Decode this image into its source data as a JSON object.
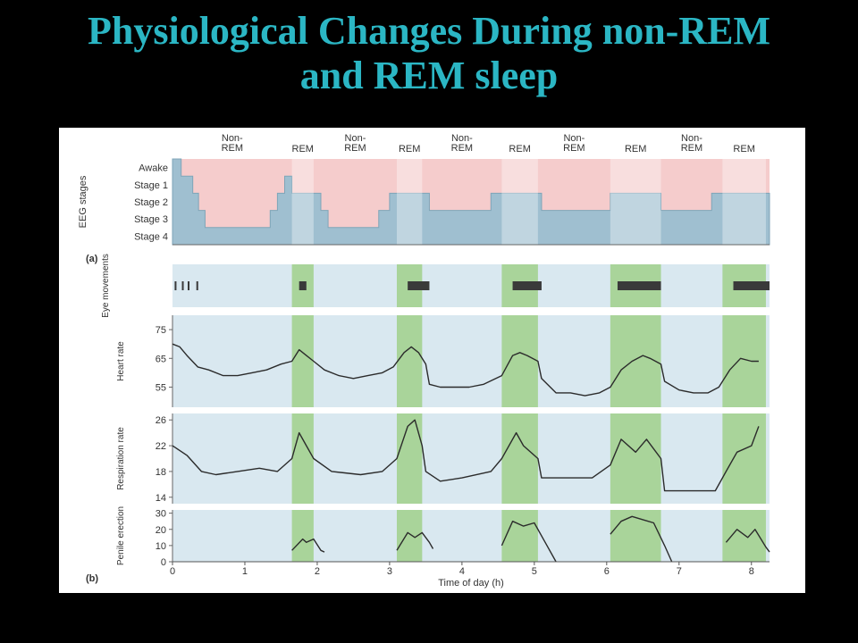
{
  "slide": {
    "title_line1": "Physiological Changes During non-REM",
    "title_line2": "and REM sleep",
    "title_color": "#2bb6c4"
  },
  "colors": {
    "rem_band": "#a9d49a",
    "panel_bg": "#d9e8f0",
    "awake_fill": "#f5cccc",
    "stage_fill": "#9fbfd0",
    "trace": "#2b2b2b"
  },
  "chart_data": {
    "type": "line",
    "x_axis": {
      "label": "Time of day (h)",
      "ticks": [
        0,
        1,
        2,
        3,
        4,
        5,
        6,
        7,
        8
      ],
      "range": [
        0,
        8.25
      ]
    },
    "cycle_labels": [
      "Non-\nREM",
      "REM",
      "Non-\nREM",
      "REM",
      "Non-\nREM",
      "REM",
      "Non-\nREM",
      "REM",
      "Non-\nREM",
      "REM"
    ],
    "rem_periods": [
      [
        1.65,
        1.95
      ],
      [
        3.1,
        3.45
      ],
      [
        4.55,
        5.05
      ],
      [
        6.05,
        6.75
      ],
      [
        7.6,
        8.2
      ]
    ],
    "panel_labels": [
      "(a)",
      "(b)"
    ],
    "panels": [
      {
        "id": "eeg",
        "type": "step",
        "ylabel": "EEG stages",
        "categories": [
          "Awake",
          "Stage 1",
          "Stage 2",
          "Stage 3",
          "Stage 4"
        ],
        "points": [
          [
            0,
            1
          ],
          [
            0.12,
            2
          ],
          [
            0.28,
            3
          ],
          [
            0.36,
            4
          ],
          [
            0.45,
            5
          ],
          [
            1.25,
            5
          ],
          [
            1.35,
            4
          ],
          [
            1.45,
            3
          ],
          [
            1.55,
            2
          ],
          [
            1.65,
            3
          ],
          [
            1.95,
            3
          ],
          [
            2.05,
            4
          ],
          [
            2.15,
            5
          ],
          [
            2.75,
            5
          ],
          [
            2.85,
            4
          ],
          [
            3.0,
            3
          ],
          [
            3.1,
            3
          ],
          [
            3.45,
            3
          ],
          [
            3.55,
            4
          ],
          [
            3.95,
            4
          ],
          [
            4.4,
            3
          ],
          [
            4.55,
            3
          ],
          [
            5.05,
            3
          ],
          [
            5.1,
            4
          ],
          [
            5.4,
            4
          ],
          [
            5.5,
            4
          ],
          [
            6.05,
            4
          ],
          [
            6.05,
            3
          ],
          [
            6.75,
            3
          ],
          [
            6.75,
            4
          ],
          [
            7.4,
            4
          ],
          [
            7.45,
            3
          ],
          [
            7.6,
            3
          ],
          [
            8.25,
            3
          ]
        ]
      },
      {
        "id": "eye",
        "type": "events",
        "ylabel": "Eye movements",
        "bursts": [
          [
            0.03,
            0.04
          ],
          [
            0.13,
            0.14
          ],
          [
            0.21,
            0.22
          ],
          [
            0.33,
            0.34
          ],
          [
            1.75,
            1.85
          ],
          [
            3.25,
            3.55
          ],
          [
            4.7,
            5.1
          ],
          [
            6.15,
            6.75
          ],
          [
            7.75,
            8.25
          ]
        ]
      },
      {
        "id": "heart",
        "type": "line",
        "ylabel": "Heart rate",
        "ticks": [
          55,
          65,
          75
        ],
        "ylim": [
          48,
          80
        ],
        "points": [
          [
            0,
            70
          ],
          [
            0.1,
            69
          ],
          [
            0.2,
            66
          ],
          [
            0.35,
            62
          ],
          [
            0.5,
            61
          ],
          [
            0.7,
            59
          ],
          [
            0.9,
            59
          ],
          [
            1.1,
            60
          ],
          [
            1.3,
            61
          ],
          [
            1.5,
            63
          ],
          [
            1.65,
            64
          ],
          [
            1.75,
            68
          ],
          [
            1.85,
            66
          ],
          [
            1.95,
            64
          ],
          [
            2.1,
            61
          ],
          [
            2.3,
            59
          ],
          [
            2.5,
            58
          ],
          [
            2.7,
            59
          ],
          [
            2.9,
            60
          ],
          [
            3.05,
            62
          ],
          [
            3.2,
            67
          ],
          [
            3.3,
            69
          ],
          [
            3.4,
            67
          ],
          [
            3.5,
            63
          ],
          [
            3.55,
            56
          ],
          [
            3.7,
            55
          ],
          [
            3.9,
            55
          ],
          [
            4.1,
            55
          ],
          [
            4.3,
            56
          ],
          [
            4.55,
            59
          ],
          [
            4.7,
            66
          ],
          [
            4.8,
            67
          ],
          [
            4.9,
            66
          ],
          [
            5.05,
            64
          ],
          [
            5.1,
            58
          ],
          [
            5.3,
            53
          ],
          [
            5.5,
            53
          ],
          [
            5.7,
            52
          ],
          [
            5.9,
            53
          ],
          [
            6.05,
            55
          ],
          [
            6.2,
            61
          ],
          [
            6.35,
            64
          ],
          [
            6.5,
            66
          ],
          [
            6.6,
            65
          ],
          [
            6.75,
            63
          ],
          [
            6.8,
            57
          ],
          [
            7.0,
            54
          ],
          [
            7.2,
            53
          ],
          [
            7.4,
            53
          ],
          [
            7.55,
            55
          ],
          [
            7.7,
            61
          ],
          [
            7.85,
            65
          ],
          [
            8.0,
            64
          ],
          [
            8.1,
            64
          ]
        ]
      },
      {
        "id": "resp",
        "type": "line",
        "ylabel": "Respiration rate",
        "ticks": [
          14,
          18,
          22,
          26
        ],
        "ylim": [
          13,
          27
        ],
        "points": [
          [
            0,
            22
          ],
          [
            0.2,
            20.5
          ],
          [
            0.4,
            18
          ],
          [
            0.6,
            17.5
          ],
          [
            0.9,
            18
          ],
          [
            1.2,
            18.5
          ],
          [
            1.45,
            18
          ],
          [
            1.65,
            20
          ],
          [
            1.75,
            24
          ],
          [
            1.85,
            22
          ],
          [
            1.95,
            20
          ],
          [
            2.2,
            18
          ],
          [
            2.6,
            17.5
          ],
          [
            2.9,
            18
          ],
          [
            3.1,
            20
          ],
          [
            3.25,
            25
          ],
          [
            3.35,
            26
          ],
          [
            3.45,
            22
          ],
          [
            3.5,
            18
          ],
          [
            3.7,
            16.5
          ],
          [
            4.0,
            17
          ],
          [
            4.4,
            18
          ],
          [
            4.55,
            20
          ],
          [
            4.75,
            24
          ],
          [
            4.85,
            22
          ],
          [
            5.05,
            20
          ],
          [
            5.1,
            17
          ],
          [
            5.4,
            17
          ],
          [
            5.8,
            17
          ],
          [
            6.05,
            19
          ],
          [
            6.2,
            23
          ],
          [
            6.4,
            21
          ],
          [
            6.55,
            23
          ],
          [
            6.75,
            20
          ],
          [
            6.8,
            15
          ],
          [
            7.2,
            15
          ],
          [
            7.5,
            15
          ],
          [
            7.65,
            18
          ],
          [
            7.8,
            21
          ],
          [
            8.0,
            22
          ],
          [
            8.1,
            25
          ]
        ]
      },
      {
        "id": "penile",
        "type": "line",
        "ylabel": "Penile erection",
        "ticks": [
          0,
          10,
          20,
          30
        ],
        "ylim": [
          0,
          32
        ],
        "segments": [
          [
            [
              1.65,
              7
            ],
            [
              1.8,
              14
            ],
            [
              1.85,
              12
            ],
            [
              1.95,
              14
            ],
            [
              2.05,
              7
            ],
            [
              2.1,
              6
            ]
          ],
          [
            [
              3.1,
              7
            ],
            [
              3.25,
              18
            ],
            [
              3.35,
              15
            ],
            [
              3.45,
              18
            ],
            [
              3.55,
              12
            ],
            [
              3.6,
              8
            ]
          ],
          [
            [
              4.55,
              10
            ],
            [
              4.7,
              25
            ],
            [
              4.85,
              22
            ],
            [
              5.0,
              24
            ],
            [
              5.15,
              12
            ],
            [
              5.3,
              0
            ]
          ],
          [
            [
              6.05,
              17
            ],
            [
              6.2,
              25
            ],
            [
              6.35,
              28
            ],
            [
              6.5,
              26
            ],
            [
              6.65,
              24
            ],
            [
              6.8,
              10
            ],
            [
              6.9,
              0
            ]
          ],
          [
            [
              7.65,
              12
            ],
            [
              7.8,
              20
            ],
            [
              7.95,
              15
            ],
            [
              8.05,
              20
            ],
            [
              8.2,
              9
            ],
            [
              8.25,
              6
            ]
          ]
        ]
      }
    ]
  }
}
